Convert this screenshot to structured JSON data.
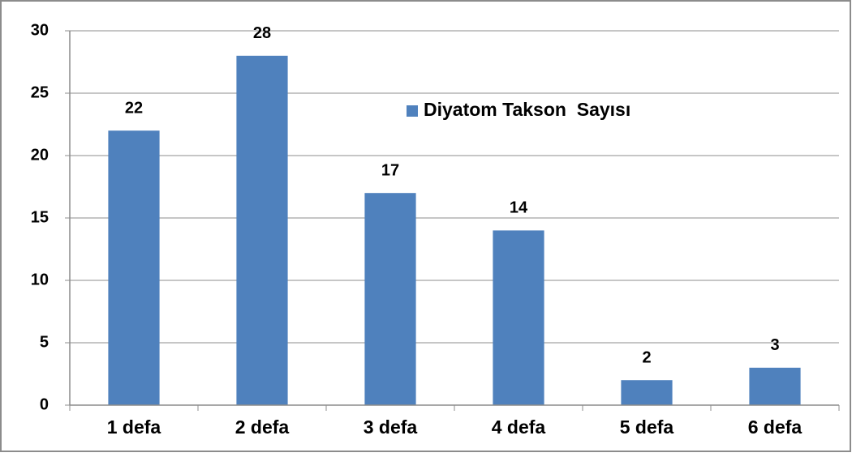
{
  "chart_data": {
    "type": "bar",
    "categories": [
      "1 defa",
      "2 defa",
      "3 defa",
      "4 defa",
      "5 defa",
      "6 defa"
    ],
    "series": [
      {
        "name": "Diyatom Takson  Sayısı",
        "color": "#4f81bd",
        "values": [
          22,
          28,
          17,
          14,
          2,
          3
        ]
      }
    ],
    "ylim": [
      0,
      30
    ],
    "yticks": [
      0,
      5,
      10,
      15,
      20,
      25,
      30
    ],
    "grid": true
  }
}
